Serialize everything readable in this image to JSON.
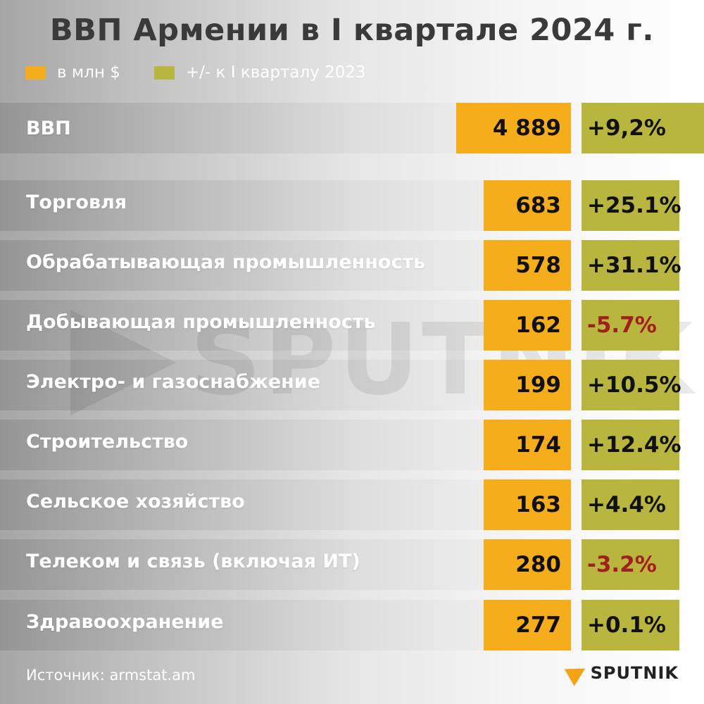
{
  "title": "ВВП Армении в I квартале 2024 г.",
  "legend": [
    {
      "label": "в млн $",
      "color": "#f5ad1b"
    },
    {
      "label": "+/- к I кварталу 2023",
      "color": "#b8b63e"
    }
  ],
  "colors": {
    "value": "#f5ad1b",
    "change": "#b8b63e",
    "positive": "#111111",
    "negative": "#a01f1f"
  },
  "chart_data": {
    "type": "table",
    "title": "ВВП Армении в I квартале 2024 г.",
    "columns": [
      "в млн $",
      "+/- к I кварталу 2023"
    ],
    "rows": [
      {
        "label": "ВВП",
        "value": 4889,
        "value_text": "4 889",
        "change": 9.2,
        "change_text": "+9,2%"
      },
      {
        "label": "Торговля",
        "value": 683,
        "value_text": "683",
        "change": 25.1,
        "change_text": "+25.1%"
      },
      {
        "label": "Обрабатывающая промышленность",
        "value": 578,
        "value_text": "578",
        "change": 31.1,
        "change_text": "+31.1%"
      },
      {
        "label": "Добывающая промышленность",
        "value": 162,
        "value_text": "162",
        "change": -5.7,
        "change_text": "-5.7%"
      },
      {
        "label": "Электро- и газоснабжение",
        "value": 199,
        "value_text": "199",
        "change": 10.5,
        "change_text": "+10.5%"
      },
      {
        "label": "Строительство",
        "value": 174,
        "value_text": "174",
        "change": 12.4,
        "change_text": "+12.4%"
      },
      {
        "label": "Сельское хозяйство",
        "value": 163,
        "value_text": "163",
        "change": 4.4,
        "change_text": "+4.4%"
      },
      {
        "label": "Телеком и связь (включая ИТ)",
        "value": 280,
        "value_text": "280",
        "change": -3.2,
        "change_text": "-3.2%"
      },
      {
        "label": "Здравоохранение",
        "value": 277,
        "value_text": "277",
        "change": 0.1,
        "change_text": "+0.1%"
      }
    ]
  },
  "source": "Источник: armstat.am",
  "brand": "SPUTNIK"
}
